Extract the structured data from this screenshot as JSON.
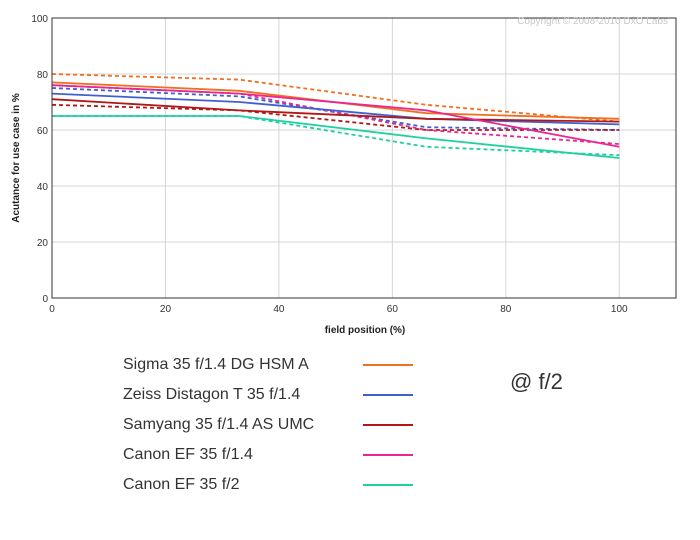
{
  "chart_data": {
    "type": "line",
    "title": "",
    "xlabel": "field position (%)",
    "ylabel": "Acutance for use case in %",
    "xlim": [
      0,
      110
    ],
    "ylim": [
      0,
      100
    ],
    "x_ticks": [
      "0",
      "20",
      "40",
      "60",
      "80",
      "100"
    ],
    "y_ticks": [
      "0",
      "20",
      "40",
      "60",
      "80",
      "100"
    ],
    "grid": true,
    "copyright": "Copyright © 2008-2010 DxO Labs",
    "legend_position": "bottom-left",
    "series": [
      {
        "name": "Sigma 35 f/1.4 DG HSM A",
        "color": "#f07020",
        "style": "solid",
        "x": [
          0,
          33,
          66,
          100
        ],
        "y": [
          77,
          74,
          66,
          64
        ]
      },
      {
        "name": "Sigma 35 f/1.4 DG HSM A",
        "color": "#f07020",
        "style": "dashed",
        "x": [
          0,
          33,
          66,
          100
        ],
        "y": [
          80,
          78,
          69,
          63
        ]
      },
      {
        "name": "Zeiss Distagon T 35 f/1.4",
        "color": "#4060d0",
        "style": "solid",
        "x": [
          0,
          33,
          66,
          100
        ],
        "y": [
          73,
          70,
          64,
          62
        ]
      },
      {
        "name": "Zeiss Distagon T 35 f/1.4",
        "color": "#4060d0",
        "style": "dashed",
        "x": [
          0,
          33,
          66,
          100
        ],
        "y": [
          75,
          72,
          61,
          60
        ]
      },
      {
        "name": "Samyang 35 f/1.4 AS UMC",
        "color": "#b01818",
        "style": "solid",
        "x": [
          0,
          33,
          66,
          100
        ],
        "y": [
          71,
          67,
          64,
          63
        ]
      },
      {
        "name": "Samyang 35 f/1.4 AS UMC",
        "color": "#b01818",
        "style": "dashed",
        "x": [
          0,
          33,
          66,
          100
        ],
        "y": [
          69,
          67,
          60,
          60
        ]
      },
      {
        "name": "Canon EF 35 f/1.4",
        "color": "#e82890",
        "style": "solid",
        "x": [
          0,
          33,
          66,
          100
        ],
        "y": [
          76,
          73,
          67,
          54
        ]
      },
      {
        "name": "Canon EF 35 f/1.4",
        "color": "#e82890",
        "style": "dashed",
        "x": [
          0,
          33,
          66,
          100
        ],
        "y": [
          76,
          73,
          60,
          55
        ]
      },
      {
        "name": "Canon EF 35 f/2",
        "color": "#20d0a0",
        "style": "solid",
        "x": [
          0,
          33,
          66,
          100
        ],
        "y": [
          65,
          65,
          57,
          50
        ]
      },
      {
        "name": "Canon EF 35 f/2",
        "color": "#20d0a0",
        "style": "dashed",
        "x": [
          0,
          33,
          66,
          100
        ],
        "y": [
          65,
          65,
          54,
          51
        ]
      }
    ]
  },
  "legend": [
    {
      "label": "Sigma 35 f/1.4 DG HSM A",
      "color": "#f07020"
    },
    {
      "label": "Zeiss Distagon T 35 f/1.4",
      "color": "#4060d0"
    },
    {
      "label": "Samyang 35 f/1.4 AS UMC",
      "color": "#b01818"
    },
    {
      "label": "Canon EF 35 f/1.4",
      "color": "#e82890"
    },
    {
      "label": "Canon EF 35 f/2",
      "color": "#20d0a0"
    }
  ],
  "aperture_label": "@ f/2"
}
